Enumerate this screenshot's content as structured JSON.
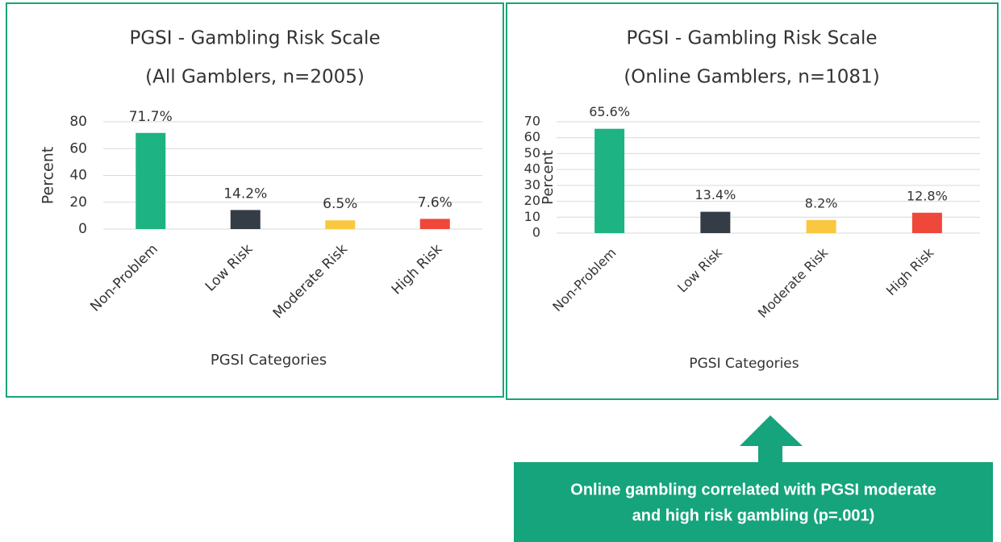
{
  "chart_data": [
    {
      "type": "bar",
      "title": "PGSI - Gambling Risk Scale",
      "subtitle": "(All Gamblers, n=2005)",
      "x_label": "PGSI Categories",
      "y_label": "Percent",
      "categories": [
        "Non-Problem",
        "Low Risk",
        "Moderate Risk",
        "High Risk"
      ],
      "values": [
        71.7,
        14.2,
        6.5,
        7.6
      ],
      "value_labels": [
        "71.7%",
        "14.2%",
        "6.5%",
        "7.6%"
      ],
      "colors": [
        "#1db382",
        "#343d46",
        "#f9c840",
        "#ef473a"
      ],
      "ylim": [
        0,
        80
      ],
      "yticks": [
        0,
        20,
        40,
        60,
        80
      ],
      "grid": true
    },
    {
      "type": "bar",
      "title": "PGSI - Gambling Risk Scale",
      "subtitle": "(Online Gamblers, n=1081)",
      "x_label": "PGSI Categories",
      "y_label": "Percent",
      "categories": [
        "Non-Problem",
        "Low Risk",
        "Moderate Risk",
        "High Risk"
      ],
      "values": [
        65.6,
        13.4,
        8.2,
        12.8
      ],
      "value_labels": [
        "65.6%",
        "13.4%",
        "8.2%",
        "12.8%"
      ],
      "colors": [
        "#1db382",
        "#343d46",
        "#f9c840",
        "#ef473a"
      ],
      "ylim": [
        0,
        70
      ],
      "yticks": [
        0,
        10,
        20,
        30,
        40,
        50,
        60,
        70
      ],
      "grid": true
    }
  ],
  "callout": {
    "lines": [
      "Online gambling correlated with PGSI moderate",
      "and high risk gambling (p=.001)"
    ]
  }
}
